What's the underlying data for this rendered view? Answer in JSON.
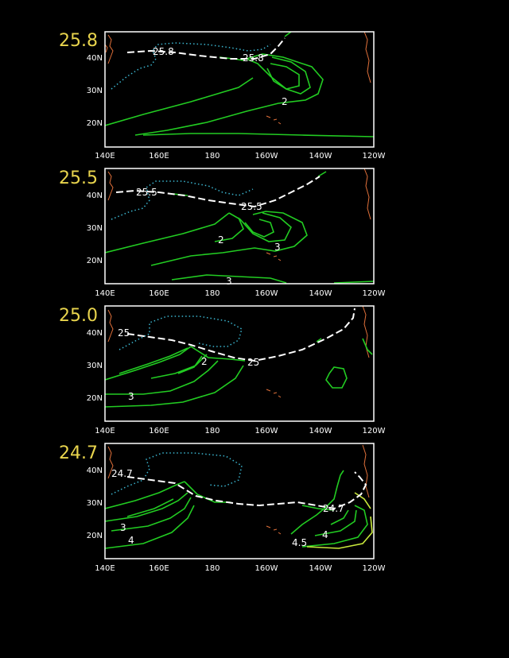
{
  "colors": {
    "background": "#000000",
    "frame": "#ffffff",
    "level_label": "#e8d44d",
    "contour": "#22cc22",
    "contour_yellow": "#c8e83c",
    "dotted": "#3bb6d0",
    "coast": "#e0703a",
    "outcrop": "#ffffff"
  },
  "lon_ticks": [
    "140E",
    "160E",
    "180",
    "160W",
    "140W",
    "120W"
  ],
  "lat_ticks": [
    "40N",
    "30N",
    "20N"
  ],
  "panels": [
    {
      "level": "25.8",
      "labels": [
        "25.8",
        "25.8",
        "2"
      ]
    },
    {
      "level": "25.5",
      "labels": [
        "25.5",
        "25.5",
        "2",
        "3",
        "3"
      ]
    },
    {
      "level": "25.0",
      "labels": [
        "25",
        "2",
        "25",
        "3"
      ]
    },
    {
      "level": "24.7",
      "labels": [
        "24.7",
        "24.7",
        "3",
        "4",
        "4",
        "4.5"
      ]
    }
  ]
}
